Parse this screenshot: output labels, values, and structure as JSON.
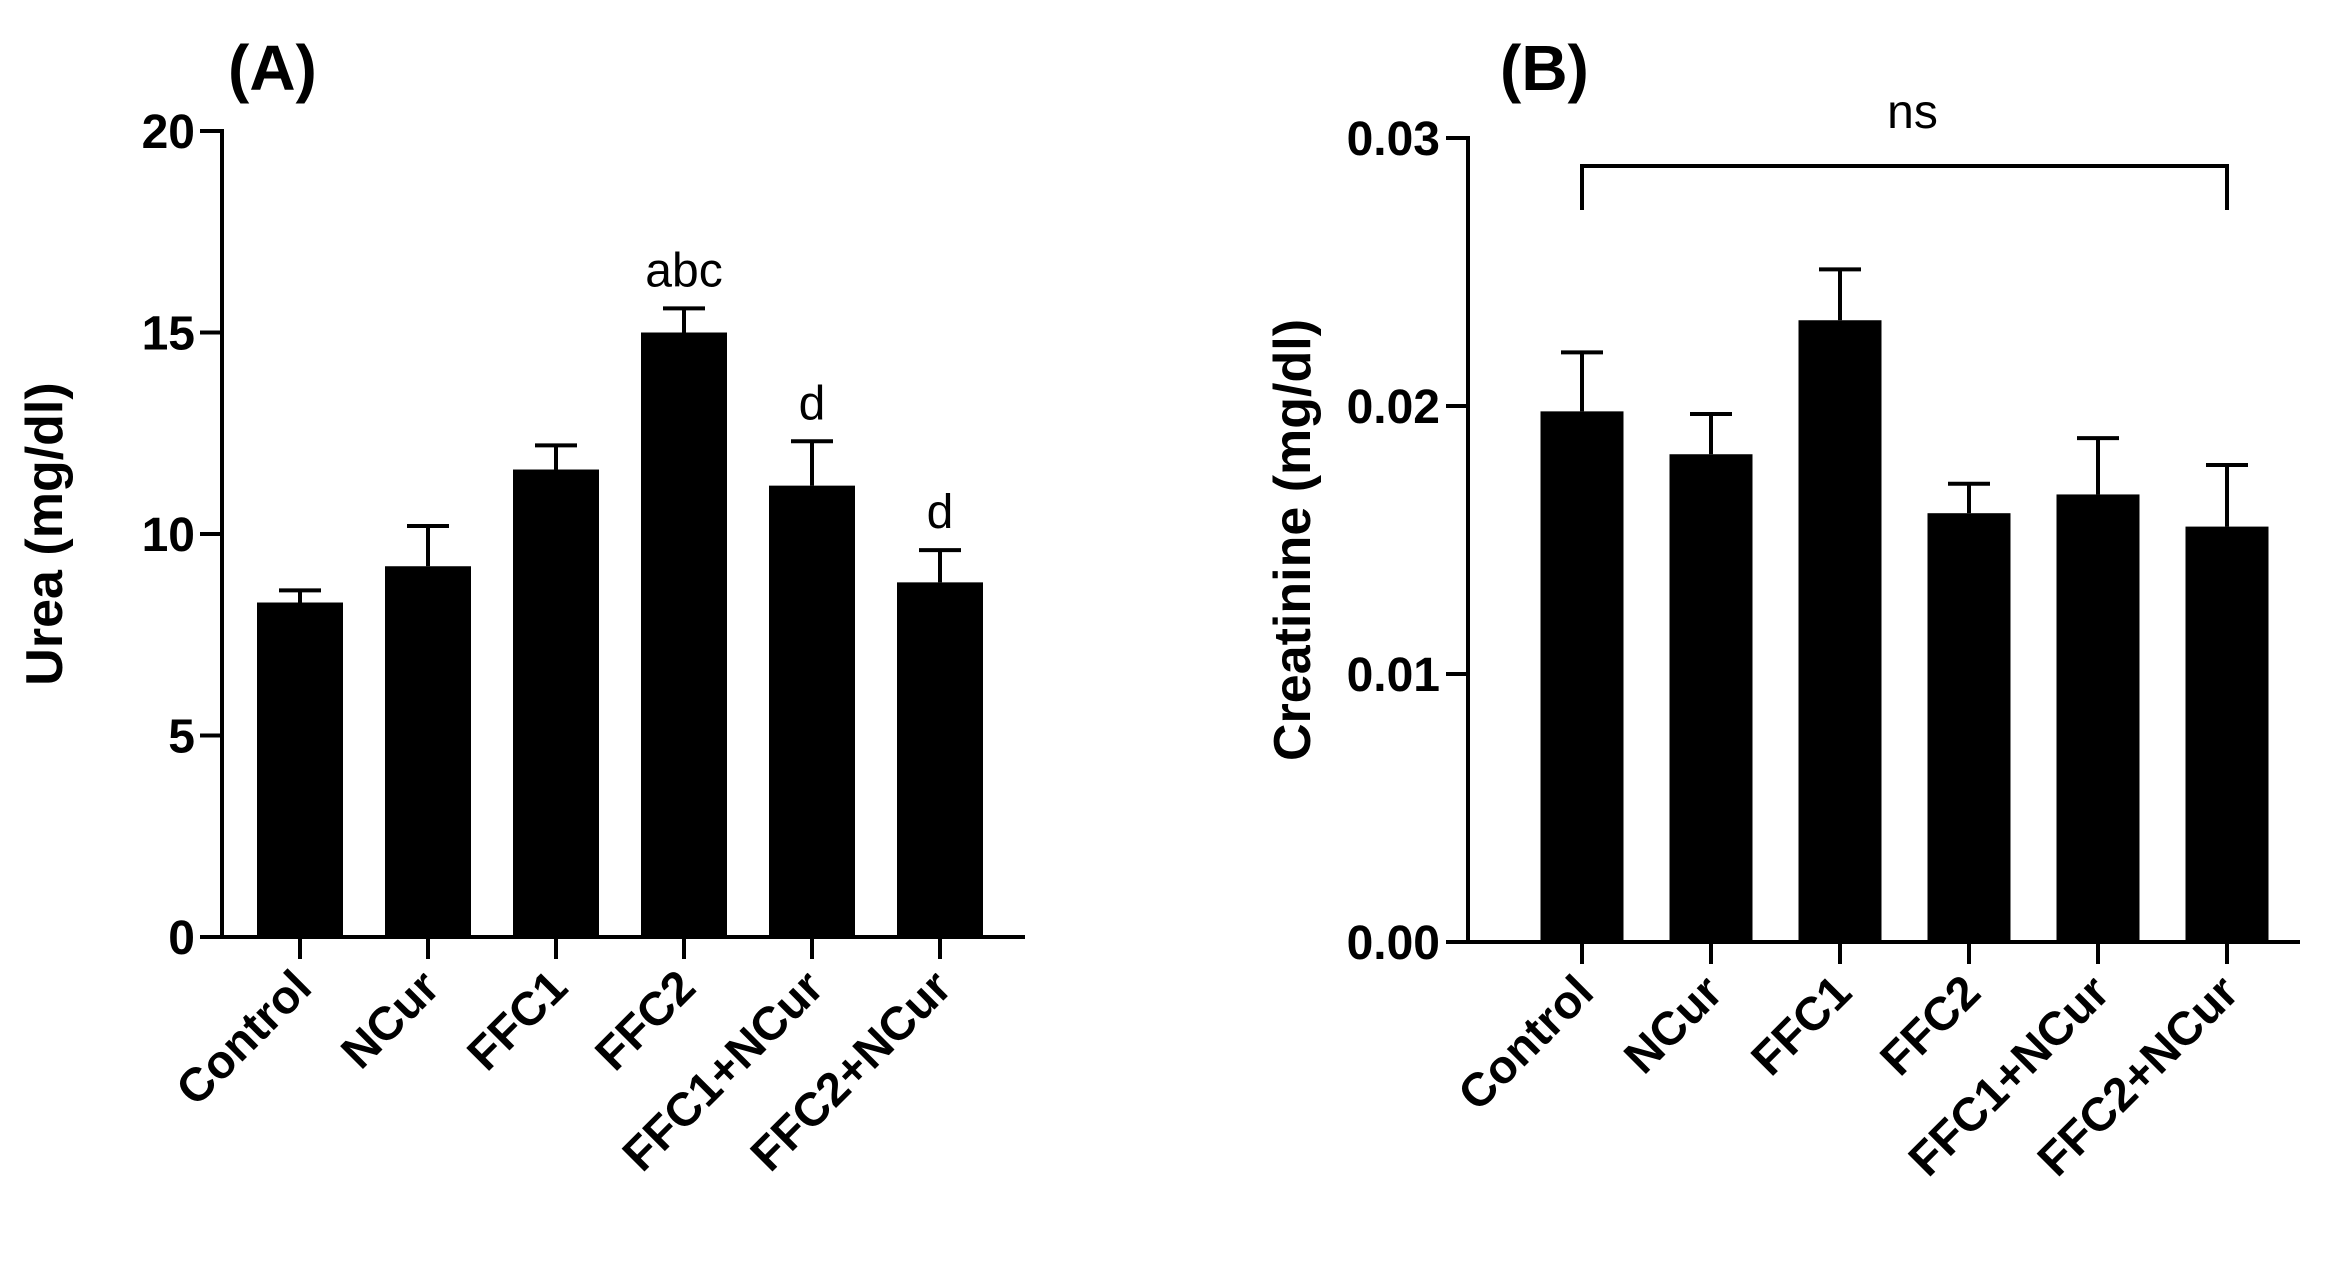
{
  "chart_data": [
    {
      "type": "bar",
      "panel_label": "(A)",
      "title": "",
      "xlabel": "",
      "ylabel": "Urea (mg/dl)",
      "ylim": [
        0,
        20
      ],
      "yticks": [
        "0",
        "5",
        "10",
        "15",
        "20"
      ],
      "categories": [
        "Control",
        "NCur",
        "FFC1",
        "FFC2",
        "FFC1+NCur",
        "FFC2+NCur"
      ],
      "values": [
        8.3,
        9.2,
        11.6,
        15.0,
        11.2,
        8.8
      ],
      "errors": [
        0.3,
        1.0,
        0.6,
        0.6,
        1.1,
        0.8
      ],
      "annotations": [
        "",
        "",
        "",
        "abc",
        "d",
        "d"
      ],
      "bar_color": "#000000"
    },
    {
      "type": "bar",
      "panel_label": "(B)",
      "title": "",
      "xlabel": "",
      "ylabel": "Creatinine (mg/dl)",
      "ylim": [
        0,
        0.03
      ],
      "yticks": [
        "0.00",
        "0.01",
        "0.02",
        "0.03"
      ],
      "categories": [
        "Control",
        "NCur",
        "FFC1",
        "FFC2",
        "FFC1+NCur",
        "FFC2+NCur"
      ],
      "values": [
        0.0198,
        0.0182,
        0.0232,
        0.016,
        0.0167,
        0.0155
      ],
      "errors": [
        0.0022,
        0.0015,
        0.0019,
        0.0011,
        0.0021,
        0.0023
      ],
      "annotations": [
        "",
        "",
        "",
        "",
        "",
        ""
      ],
      "bracket": {
        "from": 0,
        "to": 5,
        "label": "ns"
      },
      "bar_color": "#000000"
    }
  ]
}
